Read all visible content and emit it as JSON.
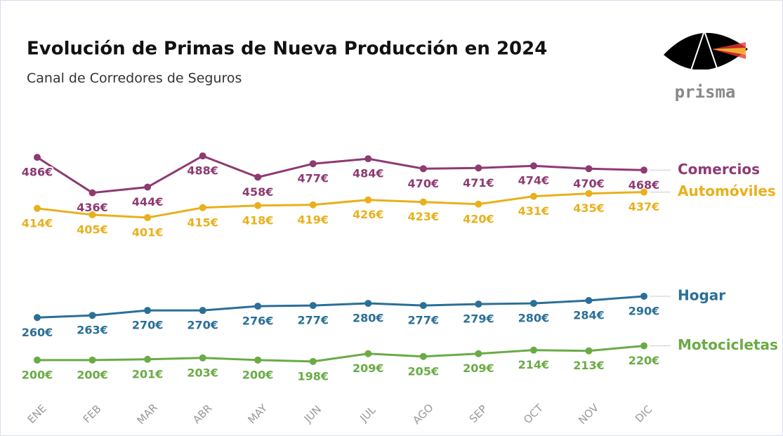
{
  "logo": "prisma",
  "chart_data": {
    "type": "line",
    "title": "Evolución de Primas de Nueva Producción en 2024",
    "subtitle": "Canal de Corredores de Seguros",
    "categories": [
      "ENE",
      "FEB",
      "MAR",
      "ABR",
      "MAY",
      "JUN",
      "JUL",
      "AGO",
      "SEP",
      "OCT",
      "NOV",
      "DIC"
    ],
    "ylim": [
      180,
      500
    ],
    "series": [
      {
        "name": "Comercios",
        "color": "#8e3a73",
        "values": [
          486,
          436,
          444,
          488,
          458,
          477,
          484,
          470,
          471,
          474,
          470,
          468
        ],
        "value_labels": [
          "486€",
          "436€",
          "444€",
          "488€",
          "458€",
          "477€",
          "484€",
          "470€",
          "471€",
          "474€",
          "470€",
          "468€"
        ]
      },
      {
        "name": "Automóviles",
        "color": "#e8b01c",
        "values": [
          414,
          405,
          401,
          415,
          418,
          419,
          426,
          423,
          420,
          431,
          435,
          437
        ],
        "value_labels": [
          "414€",
          "405€",
          "401€",
          "415€",
          "418€",
          "419€",
          "426€",
          "423€",
          "420€",
          "431€",
          "435€",
          "437€"
        ]
      },
      {
        "name": "Hogar",
        "color": "#2a6f97",
        "values": [
          260,
          263,
          270,
          270,
          276,
          277,
          280,
          277,
          279,
          280,
          284,
          290
        ],
        "value_labels": [
          "260€",
          "263€",
          "270€",
          "270€",
          "276€",
          "277€",
          "280€",
          "277€",
          "279€",
          "280€",
          "284€",
          "290€"
        ]
      },
      {
        "name": "Motocicletas",
        "color": "#6aab45",
        "values": [
          200,
          200,
          201,
          203,
          200,
          198,
          209,
          205,
          209,
          214,
          213,
          220
        ],
        "value_labels": [
          "200€",
          "200€",
          "201€",
          "203€",
          "200€",
          "198€",
          "209€",
          "205€",
          "209€",
          "214€",
          "213€",
          "220€"
        ]
      }
    ]
  }
}
